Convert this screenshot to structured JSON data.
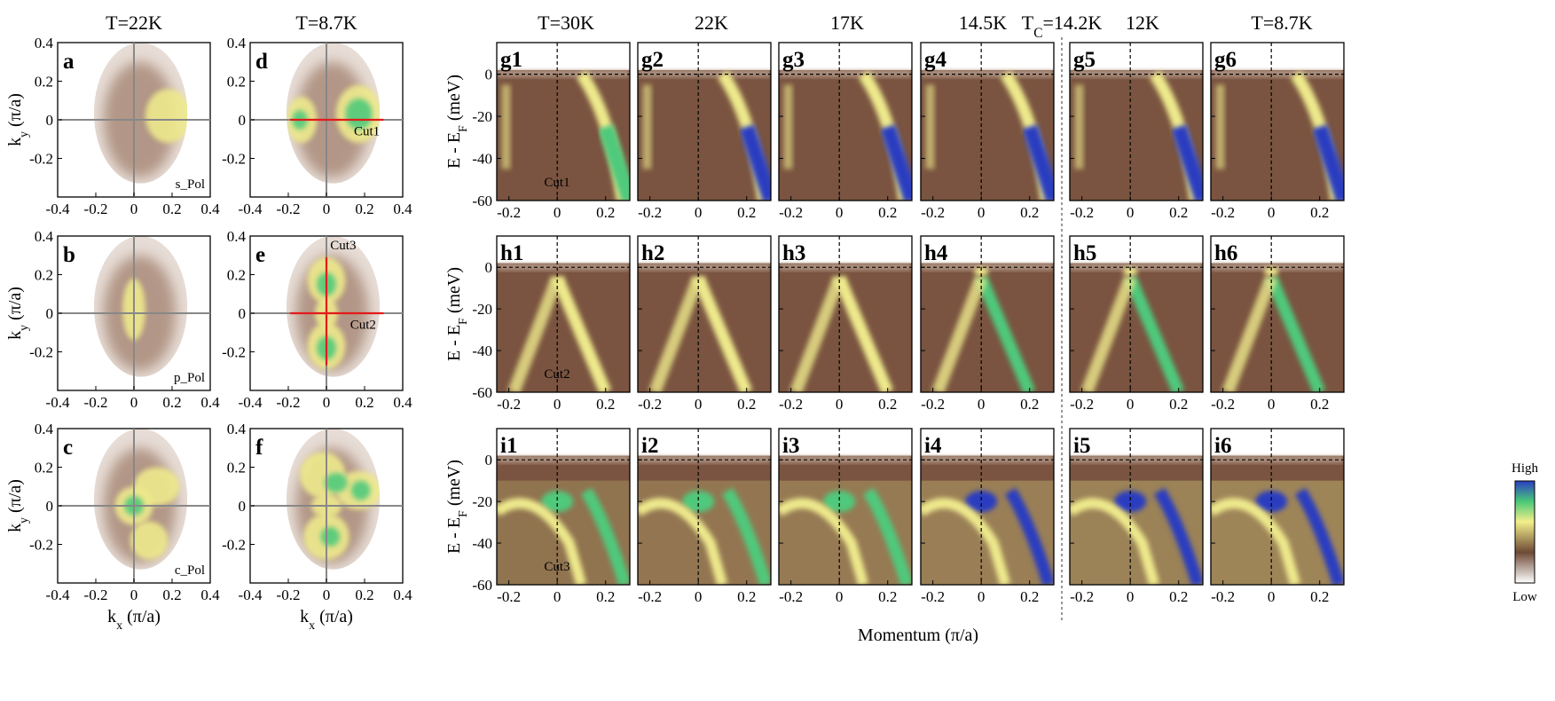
{
  "figure": {
    "fermi_maps": {
      "column_titles": [
        "T=22K",
        "T=8.7K"
      ],
      "panels": [
        {
          "label": "a",
          "pol": "s_Pol",
          "cut": "",
          "cuts_h": false,
          "cut_v": false
        },
        {
          "label": "b",
          "pol": "p_Pol",
          "cut": "",
          "cuts_h": false,
          "cut_v": false
        },
        {
          "label": "c",
          "pol": "c_Pol",
          "cut": "",
          "cuts_h": false,
          "cut_v": false
        },
        {
          "label": "d",
          "pol": "",
          "cut": "Cut1",
          "cuts_h": true,
          "cut_v": false
        },
        {
          "label": "e",
          "pol": "",
          "cut": "Cut2",
          "cut2": "Cut3",
          "cuts_h": true,
          "cut_v": true
        },
        {
          "label": "f",
          "pol": "",
          "cut": "",
          "cuts_h": false,
          "cut_v": false
        }
      ],
      "x_ticks": [
        "-0.4",
        "-0.2",
        "0",
        "0.2",
        "0.4"
      ],
      "y_ticks": [
        "0.4",
        "0.2",
        "0",
        "-0.2"
      ],
      "xlabel_main": "k",
      "xlabel_sub": "x",
      "xlabel_unit": " (π/a)",
      "ylabel_main": "k",
      "ylabel_sub": "y",
      "ylabel_unit": " (π/a)"
    },
    "band_cuts": {
      "column_titles": [
        "T=30K",
        "22K",
        "17K",
        "14.5K",
        "12K",
        "T=8.7K"
      ],
      "tc_main": "T",
      "tc_sub": "C",
      "tc_value": "=14.2K",
      "row_labels": [
        [
          "g1",
          "g2",
          "g3",
          "g4",
          "g5",
          "g6"
        ],
        [
          "h1",
          "h2",
          "h3",
          "h4",
          "h5",
          "h6"
        ],
        [
          "i1",
          "i2",
          "i3",
          "i4",
          "i5",
          "i6"
        ]
      ],
      "cut_labels": [
        "Cut1",
        "Cut2",
        "Cut3"
      ],
      "y_ticks": [
        "0",
        "-20",
        "-40",
        "-60"
      ],
      "x_ticks": [
        "-0.2",
        "0",
        "0.2"
      ],
      "ylabel_main": "E - E",
      "ylabel_sub": "F",
      "ylabel_unit": " (meV)",
      "xlabel": "Momentum (π/a)"
    },
    "colorbar": {
      "high": "High",
      "low": "Low",
      "stops": [
        "#ffffff",
        "#6e4a36",
        "#f3ef8a",
        "#49c877",
        "#2a3dc2"
      ]
    }
  }
}
